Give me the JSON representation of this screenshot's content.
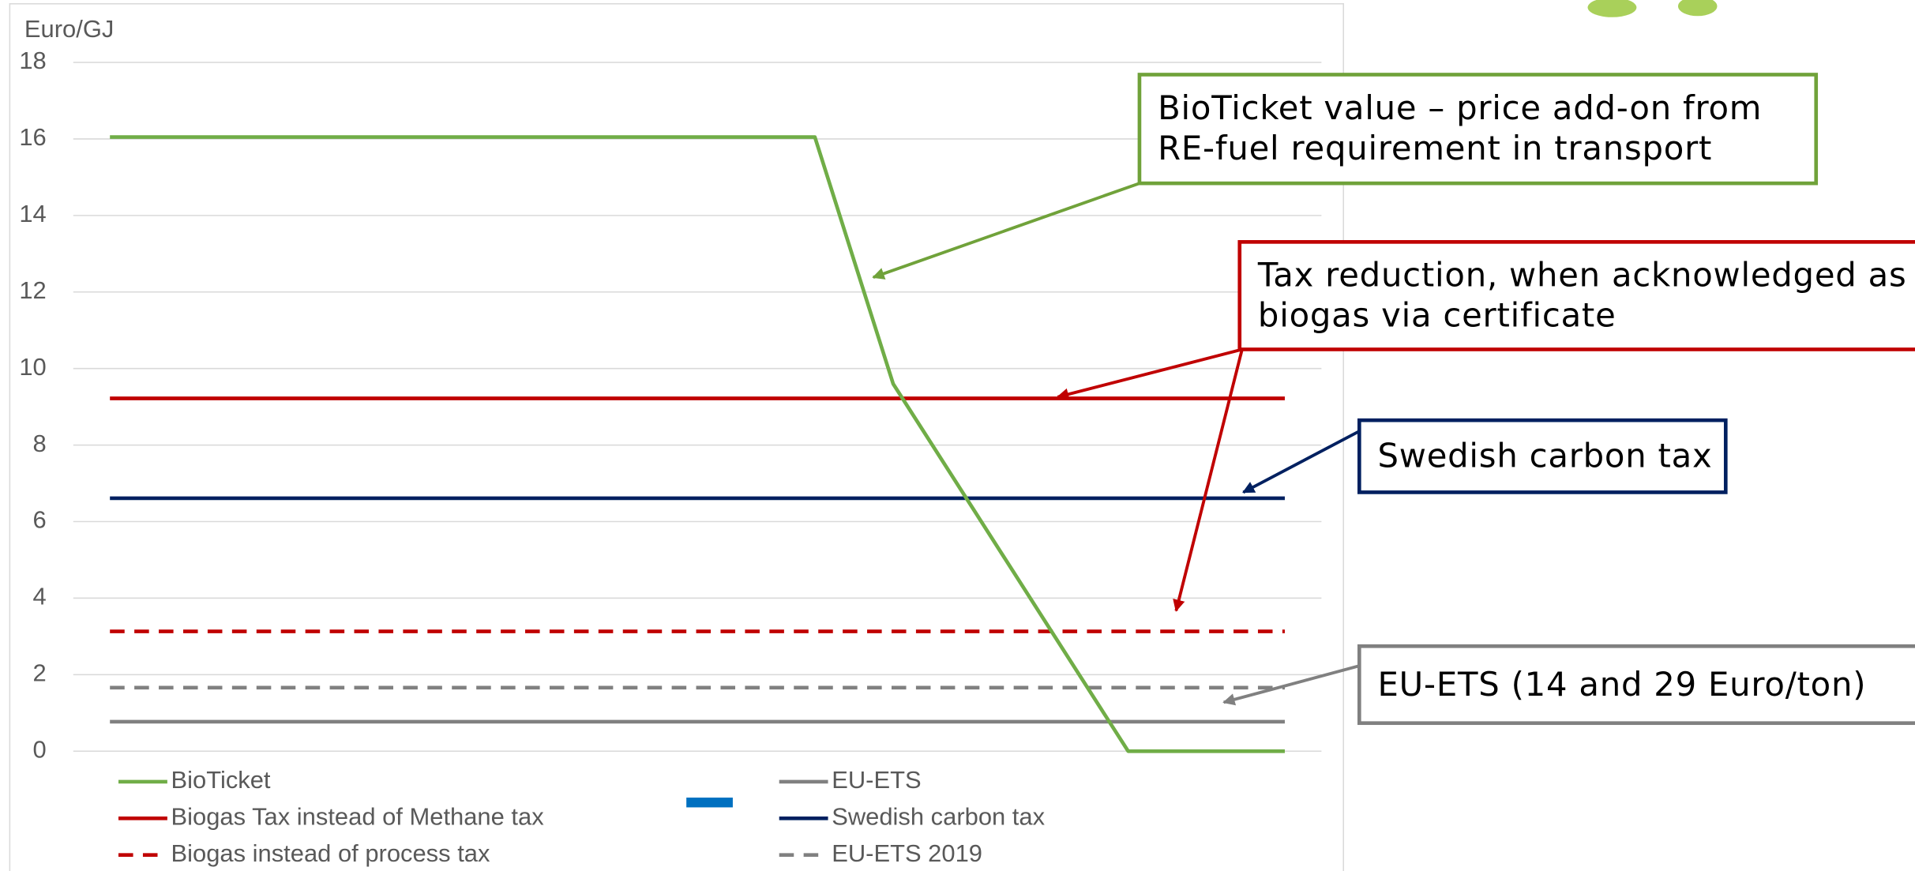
{
  "chart_data": {
    "type": "line",
    "y_label": "Euro/GJ",
    "categories": [
      null,
      null,
      null,
      null,
      null,
      null,
      null,
      null,
      null,
      null,
      null,
      null,
      null,
      null,
      null,
      null
    ],
    "ylim": [
      0,
      18
    ],
    "yticks": [
      0,
      2,
      4,
      6,
      8,
      10,
      12,
      14,
      16,
      18
    ],
    "grid": true,
    "series": [
      {
        "name": "BioTicket",
        "color": "#70ad47",
        "dashed": false,
        "values": [
          16.05,
          16.05,
          16.05,
          16.05,
          16.05,
          16.05,
          16.05,
          16.05,
          16.05,
          16.05,
          9.6,
          6.4,
          3.2,
          0,
          0,
          0
        ]
      },
      {
        "name": "Biogas Tax instead of Methane tax",
        "color": "#c00000",
        "dashed": false,
        "values": [
          9.22,
          9.22,
          9.22,
          9.22,
          9.22,
          9.22,
          9.22,
          9.22,
          9.22,
          9.22,
          9.22,
          9.22,
          9.22,
          9.22,
          9.22,
          9.22
        ]
      },
      {
        "name": "Biogas instead of process tax",
        "color": "#c00000",
        "dashed": true,
        "values": [
          3.13,
          3.13,
          3.13,
          3.13,
          3.13,
          3.13,
          3.13,
          3.13,
          3.13,
          3.13,
          3.13,
          3.13,
          3.13,
          3.13,
          3.13,
          3.13
        ]
      },
      {
        "name": "EU-ETS",
        "color": "#808080",
        "dashed": false,
        "values": [
          0.77,
          0.77,
          0.77,
          0.77,
          0.77,
          0.77,
          0.77,
          0.77,
          0.77,
          0.77,
          0.77,
          0.77,
          0.77,
          0.77,
          0.77,
          0.77
        ]
      },
      {
        "name": "Swedish carbon tax",
        "color": "#002060",
        "dashed": false,
        "values": [
          6.61,
          6.61,
          6.61,
          6.61,
          6.61,
          6.61,
          6.61,
          6.61,
          6.61,
          6.61,
          6.61,
          6.61,
          6.61,
          6.61,
          6.61,
          6.61
        ]
      },
      {
        "name": "EU-ETS 2019",
        "color": "#808080",
        "dashed": true,
        "values": [
          1.66,
          1.66,
          1.66,
          1.66,
          1.66,
          1.66,
          1.66,
          1.66,
          1.66,
          1.66,
          1.66,
          1.66,
          1.66,
          1.66,
          1.66,
          1.66
        ]
      }
    ],
    "annotations": [
      {
        "lines": [
          "BioTicket value – price add-on from",
          "RE-fuel requirement in transport"
        ],
        "color": "#70a23a"
      },
      {
        "lines": [
          "Tax reduction, when acknowledged as",
          "biogas via certificate"
        ],
        "color": "#c00000"
      },
      {
        "lines": [
          "Swedish carbon tax"
        ],
        "color": "#002060"
      },
      {
        "lines": [
          "EU-ETS (14 and 29 Euro/ton)"
        ],
        "color": "#808080"
      }
    ]
  }
}
